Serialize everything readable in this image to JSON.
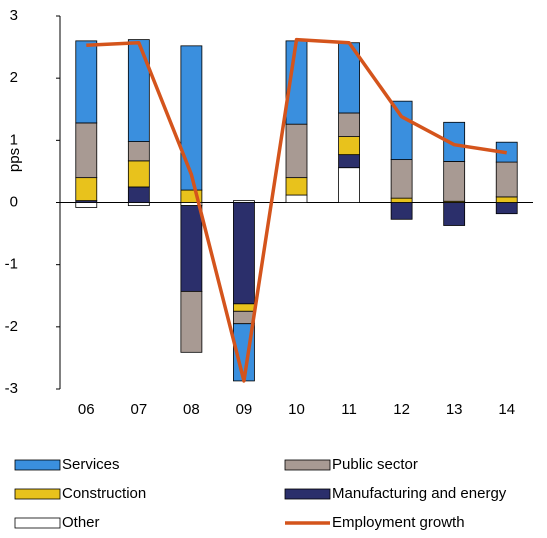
{
  "chart_data": {
    "type": "bar",
    "y_label": "pps",
    "categories": [
      "06",
      "07",
      "08",
      "09",
      "10",
      "11",
      "12",
      "13",
      "14"
    ],
    "series": [
      {
        "name": "Services",
        "color": "#3a8fde",
        "values": [
          1.32,
          1.64,
          2.32,
          -0.92,
          1.34,
          1.13,
          0.94,
          0.63,
          0.32
        ]
      },
      {
        "name": "Public sector",
        "color": "#a89a93",
        "values": [
          0.88,
          0.31,
          -0.98,
          -0.2,
          0.86,
          0.38,
          0.62,
          0.64,
          0.56
        ]
      },
      {
        "name": "Construction",
        "color": "#e8c21c",
        "values": [
          0.37,
          0.42,
          0.2,
          -0.12,
          0.28,
          0.29,
          0.07,
          0.02,
          0.09
        ]
      },
      {
        "name": "Manufacturing and energy",
        "color": "#2b2f6b",
        "values": [
          0.03,
          0.25,
          -1.38,
          -1.63,
          0,
          0.21,
          -0.27,
          -0.37,
          -0.18
        ]
      },
      {
        "name": "Other",
        "color": "#ffffff",
        "values": [
          -0.08,
          -0.05,
          -0.05,
          0.03,
          0.12,
          0.56,
          0,
          0,
          0
        ]
      },
      {
        "name": "Employment growth",
        "type": "line",
        "color": "#d4541c",
        "values": [
          2.53,
          2.57,
          0.45,
          -2.87,
          2.62,
          2.57,
          1.38,
          0.93,
          0.8
        ]
      }
    ],
    "ylim": [
      -3,
      3
    ],
    "yticks": [
      -3,
      -2,
      -1,
      0,
      1,
      2,
      3
    ]
  }
}
